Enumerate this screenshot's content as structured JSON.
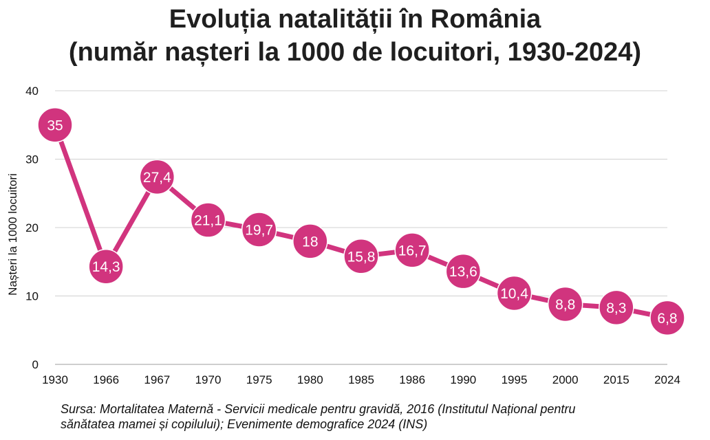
{
  "title_line1": "Evoluția natalității în România",
  "title_line2": "(număr nașteri la 1000 de locuitori, 1930-2024)",
  "source_line1": "Sursa: Mortalitatea Maternă - Servicii medicale pentru gravidă, 2016 (Institutul Național pentru",
  "source_line2": "sănătatea mamei și copilului); Evenimente demografice 2024 (INS)",
  "chart_data": {
    "type": "line",
    "title": "Evoluția natalității în România (număr nașteri la 1000 de locuitori, 1930-2024)",
    "xlabel": "",
    "ylabel": "Nașteri la 1000 locuitori",
    "categories": [
      "1930",
      "1966",
      "1967",
      "1970",
      "1975",
      "1980",
      "1985",
      "1986",
      "1990",
      "1995",
      "2000",
      "2015",
      "2024"
    ],
    "values": [
      35,
      14.3,
      27.4,
      21.1,
      19.7,
      18,
      15.8,
      16.7,
      13.6,
      10.4,
      8.8,
      8.3,
      6.8
    ],
    "data_labels": [
      "35",
      "14,3",
      "27,4",
      "21,1",
      "19,7",
      "18",
      "15,8",
      "16,7",
      "13,6",
      "10,4",
      "8,8",
      "8,3",
      "6,8"
    ],
    "ylim": [
      0,
      40
    ],
    "yticks": [
      "0",
      "10",
      "20",
      "30",
      "40"
    ],
    "grid": true,
    "legend": "none",
    "color": "#d1347e"
  }
}
